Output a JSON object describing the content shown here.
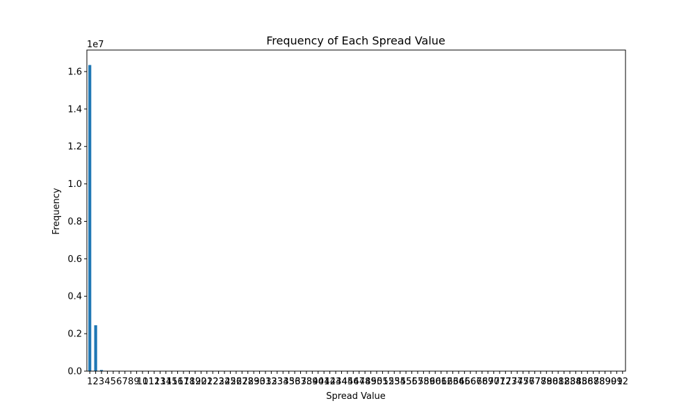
{
  "chart_data": {
    "type": "bar",
    "title": "Frequency of Each Spread Value",
    "xlabel": "Spread Value",
    "ylabel": "Frequency",
    "y_offset_label": "1e7",
    "y_tick_labels": [
      "0.0",
      "0.2",
      "0.4",
      "0.6",
      "0.8",
      "1.0",
      "1.2",
      "1.4",
      "1.6"
    ],
    "ylim": [
      0,
      17150000
    ],
    "grid": false,
    "legend": "none",
    "bar_color": "#1f77b4",
    "categories": [
      "1",
      "2",
      "3",
      "4",
      "5",
      "6",
      "7",
      "8",
      "9",
      "10",
      "11",
      "12",
      "13",
      "14",
      "15",
      "16",
      "17",
      "18",
      "19",
      "20",
      "21",
      "22",
      "23",
      "24",
      "25",
      "26",
      "27",
      "28",
      "29",
      "30",
      "31",
      "32",
      "33",
      "34",
      "35",
      "36",
      "37",
      "38",
      "39",
      "40",
      "41",
      "42",
      "43",
      "44",
      "45",
      "46",
      "47",
      "48",
      "49",
      "50",
      "51",
      "52",
      "53",
      "54",
      "55",
      "56",
      "57",
      "58",
      "59",
      "60",
      "61",
      "62",
      "63",
      "64",
      "65",
      "66",
      "67",
      "68",
      "69",
      "70",
      "71",
      "72",
      "73",
      "74",
      "75",
      "76",
      "77",
      "78",
      "79",
      "80",
      "81",
      "82",
      "83",
      "84",
      "85",
      "86",
      "87",
      "88",
      "89",
      "90",
      "91",
      "92"
    ],
    "values": [
      16350000,
      2450000,
      60000,
      10000,
      3000,
      2000,
      1000,
      800,
      600,
      500,
      400,
      300,
      300,
      200,
      200,
      200,
      150,
      150,
      120,
      100,
      100,
      90,
      80,
      80,
      70,
      60,
      60,
      50,
      50,
      50,
      40,
      40,
      40,
      35,
      35,
      30,
      30,
      30,
      25,
      25,
      25,
      20,
      20,
      20,
      20,
      15,
      15,
      15,
      15,
      12,
      12,
      12,
      12,
      10,
      10,
      10,
      10,
      10,
      8,
      8,
      8,
      8,
      8,
      6,
      6,
      6,
      6,
      6,
      5,
      5,
      5,
      5,
      5,
      4,
      4,
      4,
      4,
      4,
      3,
      3,
      3,
      3,
      3,
      2,
      2,
      2,
      2,
      2,
      1,
      1,
      1,
      1
    ]
  }
}
